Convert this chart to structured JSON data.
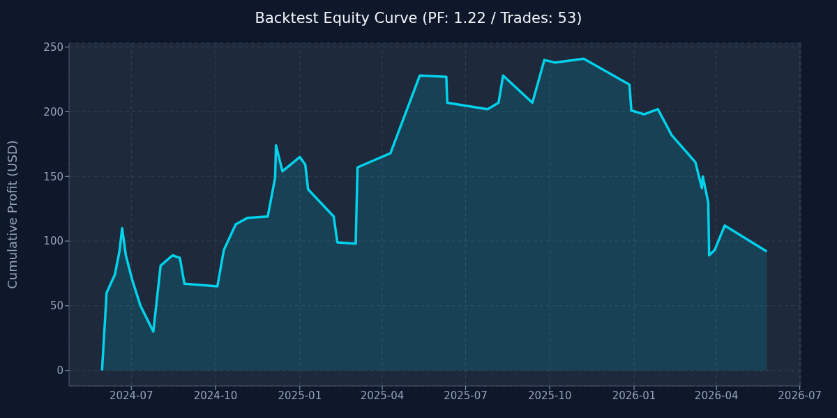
{
  "chart_data": {
    "type": "area",
    "title": "Backtest Equity Curve (PF: 1.22 / Trades: 53)",
    "ylabel": "Cumulative Profit (USD)",
    "x": [
      "2024-05-30",
      "2024-06-04",
      "2024-06-13",
      "2024-06-18",
      "2024-06-21",
      "2024-06-25",
      "2024-07-02",
      "2024-07-11",
      "2024-07-25",
      "2024-08-02",
      "2024-08-15",
      "2024-08-23",
      "2024-08-28",
      "2024-10-03",
      "2024-10-10",
      "2024-10-23",
      "2024-11-05",
      "2024-11-27",
      "2024-12-05",
      "2024-12-06",
      "2024-12-13",
      "2025-01-01",
      "2025-01-07",
      "2025-01-10",
      "2025-02-07",
      "2025-02-11",
      "2025-03-03",
      "2025-03-05",
      "2025-04-10",
      "2025-05-12",
      "2025-06-10",
      "2025-06-11",
      "2025-07-25",
      "2025-08-06",
      "2025-08-11",
      "2025-09-12",
      "2025-09-25",
      "2025-10-07",
      "2025-11-07",
      "2025-12-27",
      "2025-12-29",
      "2026-01-12",
      "2026-01-27",
      "2026-02-11",
      "2026-03-09",
      "2026-03-16",
      "2026-03-17",
      "2026-03-23",
      "2026-03-24",
      "2026-03-30",
      "2026-04-10",
      "2026-05-26"
    ],
    "series": [
      {
        "color": "#00d2eb",
        "values": [
          0,
          60,
          74,
          92,
          110,
          89,
          70,
          50,
          30,
          81,
          89,
          87,
          67,
          65,
          93,
          113,
          118,
          119,
          149,
          174,
          154,
          165,
          159,
          140,
          119,
          99,
          98,
          157,
          168,
          228,
          227,
          207,
          202,
          207,
          228,
          207,
          240,
          238,
          241,
          221,
          201,
          198,
          202,
          182,
          161,
          141,
          150,
          130,
          89,
          93,
          112,
          92
        ]
      }
    ],
    "xlim": [
      "2024-04-24",
      "2026-07-02"
    ],
    "xticks": [
      {
        "value": "2024-07-01",
        "label": "2024-07"
      },
      {
        "value": "2024-10-01",
        "label": "2024-10"
      },
      {
        "value": "2025-01-01",
        "label": "2025-01"
      },
      {
        "value": "2025-04-01",
        "label": "2025-04"
      },
      {
        "value": "2025-07-01",
        "label": "2025-07"
      },
      {
        "value": "2025-10-01",
        "label": "2025-10"
      },
      {
        "value": "2026-01-01",
        "label": "2026-01"
      },
      {
        "value": "2026-04-01",
        "label": "2026-04"
      },
      {
        "value": "2026-07-01",
        "label": "2026-07"
      }
    ],
    "ylim": [
      -12,
      253
    ],
    "yticks": [
      0,
      50,
      100,
      150,
      200,
      250
    ],
    "grid": true,
    "line_style": "solid"
  }
}
